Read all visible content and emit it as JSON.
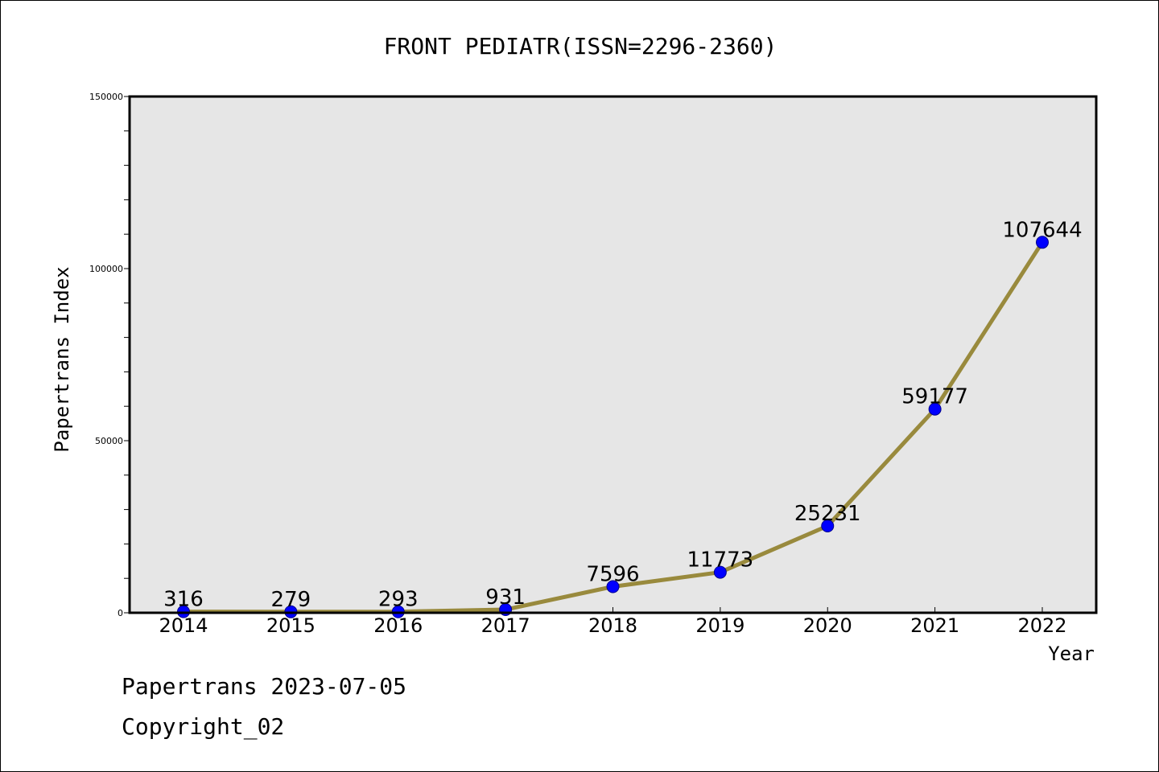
{
  "chart_data": {
    "type": "line",
    "title": "FRONT PEDIATR(ISSN=2296-2360)",
    "xlabel": "Year",
    "ylabel": "Papertrans Index",
    "categories": [
      "2014",
      "2015",
      "2016",
      "2017",
      "2018",
      "2019",
      "2020",
      "2021",
      "2022"
    ],
    "values": [
      316,
      279,
      293,
      931,
      7596,
      11773,
      25231,
      59177,
      107644
    ],
    "data_labels": [
      "316",
      "279",
      "293",
      "931",
      "7596",
      "11773",
      "25231",
      "59177",
      "107644"
    ],
    "ylim": [
      0,
      150000
    ],
    "y_ticks": [
      0,
      50000,
      100000,
      150000
    ],
    "y_tick_labels": [
      "0",
      "50000",
      "100000",
      "150000"
    ],
    "y_minor_step": 10000,
    "grid": false,
    "legend": "none",
    "colors": {
      "line": "#998a3d",
      "marker_fill": "#0000ff",
      "marker_edge": "#00008b",
      "plot_background": "#e6e6e6"
    }
  },
  "footer": {
    "line1": "Papertrans 2023-07-05",
    "line2": "Copyright_02"
  }
}
